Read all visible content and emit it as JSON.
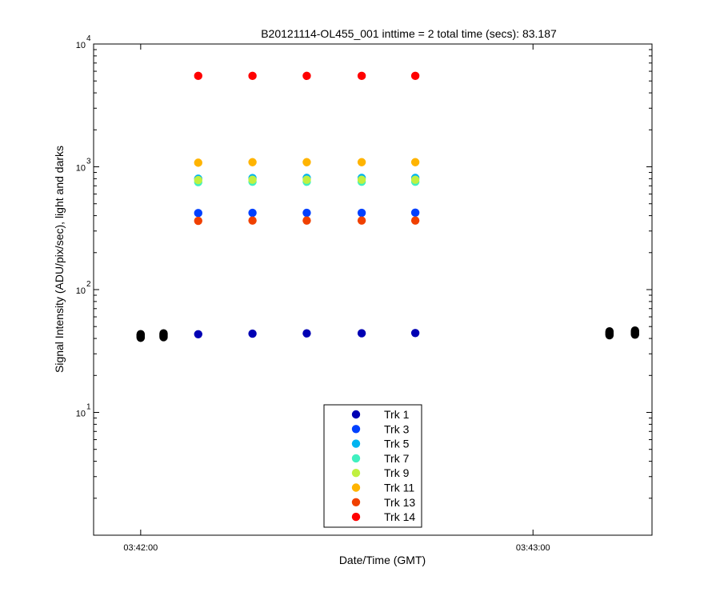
{
  "chart_data": {
    "type": "scatter",
    "title": "B20121114-OL455_001 inttime = 2 total time (secs): 83.187",
    "xlabel": "Date/Time (GMT)",
    "ylabel": "Signal Intensity (ADU/pix/sec), light and darks",
    "yscale": "log",
    "ylim": [
      1,
      10000
    ],
    "xlim_seconds_after_03_41_00": [
      52.8,
      138.2
    ],
    "y_ticks": [
      {
        "base": "10",
        "exp": "1",
        "value": 10
      },
      {
        "base": "10",
        "exp": "2",
        "value": 100
      },
      {
        "base": "10",
        "exp": "3",
        "value": 1000
      },
      {
        "base": "10",
        "exp": "4",
        "value": 10000
      }
    ],
    "x_ticks": [
      {
        "label": "03:42:00",
        "t": 60
      },
      {
        "label": "03:43:00",
        "t": 120
      }
    ],
    "legend_position": "bottom-center",
    "light_times_t": [
      68.8,
      77.1,
      85.4,
      93.8,
      102.0
    ],
    "series": [
      {
        "name": "Trk 1",
        "color": "#0000b4",
        "values": [
          43.3,
          43.8,
          44.0,
          44.1,
          44.3
        ]
      },
      {
        "name": "Trk 3",
        "color": "#0040ff",
        "values": [
          420,
          422,
          422,
          422,
          423
        ]
      },
      {
        "name": "Trk 5",
        "color": "#00b4f0",
        "values": [
          800,
          810,
          812,
          812,
          812
        ]
      },
      {
        "name": "Trk 7",
        "color": "#40f0c0",
        "values": [
          750,
          755,
          755,
          755,
          755
        ]
      },
      {
        "name": "Trk 9",
        "color": "#c0f040",
        "values": [
          780,
          785,
          785,
          785,
          785
        ]
      },
      {
        "name": "Trk 11",
        "color": "#ffb400",
        "values": [
          1080,
          1090,
          1090,
          1090,
          1090
        ]
      },
      {
        "name": "Trk 13",
        "color": "#f04000",
        "values": [
          363,
          365,
          365,
          365,
          365
        ]
      },
      {
        "name": "Trk 14",
        "color": "#ff0000",
        "values": [
          5500,
          5500,
          5500,
          5500,
          5500
        ]
      }
    ],
    "darks": {
      "color": "#000000",
      "groups": [
        {
          "t": 60.0,
          "values": [
            40.5,
            41.2,
            41.8,
            42.3,
            42.8,
            43.4
          ]
        },
        {
          "t": 63.5,
          "values": [
            41.0,
            41.6,
            42.2,
            42.8,
            43.4,
            44.0
          ]
        },
        {
          "t": 131.7,
          "values": [
            42.5,
            43.1,
            43.7,
            44.4,
            45.0,
            45.7
          ]
        },
        {
          "t": 135.6,
          "values": [
            43.0,
            43.6,
            44.3,
            45.0,
            45.7,
            46.4
          ]
        }
      ]
    }
  }
}
